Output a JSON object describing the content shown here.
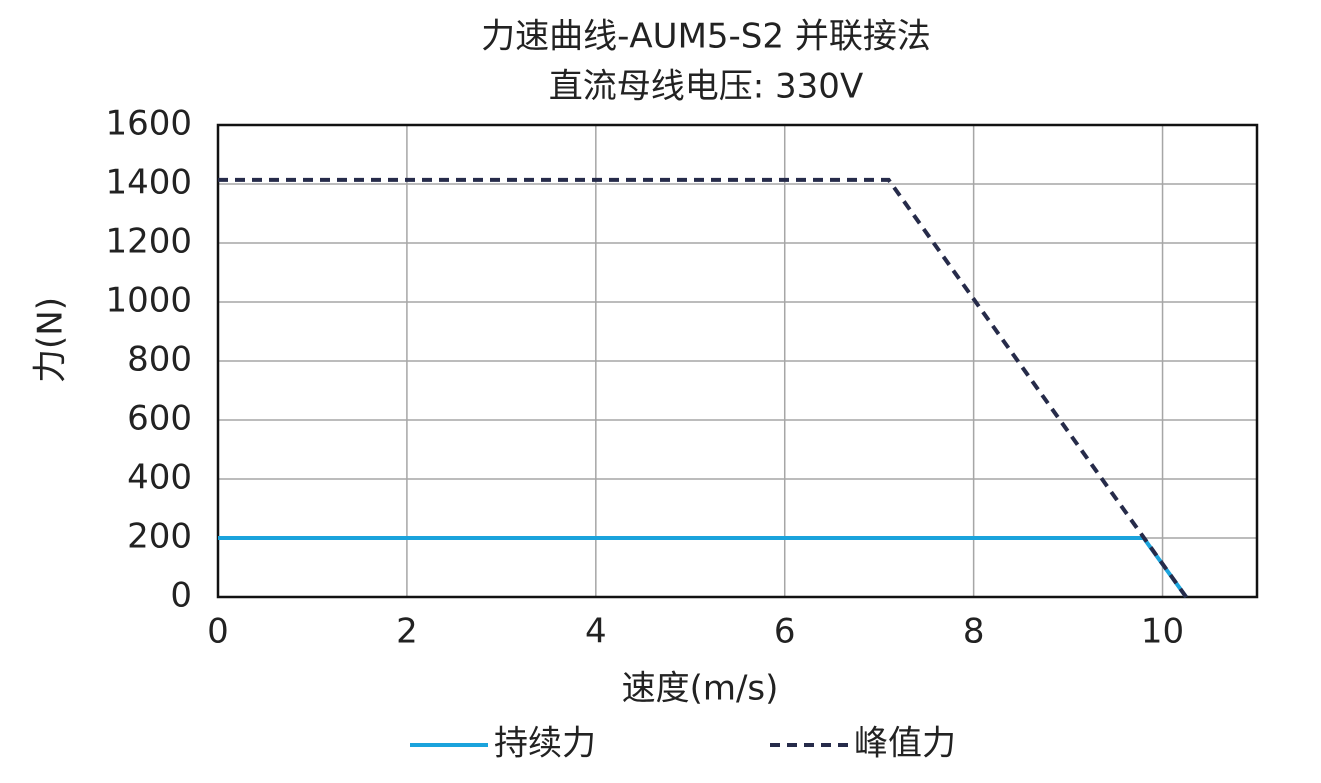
{
  "chart_data": {
    "type": "line",
    "title": "力速曲线-AUM5-S2 并联接法",
    "subtitle": "直流母线电压: 330V",
    "x_label": "速度(m/s)",
    "y_label": "力(N)",
    "series": [
      {
        "name": "持续力",
        "color": "#1aa3dc",
        "dash": false,
        "x": [
          0,
          9.8,
          10.25
        ],
        "values": [
          200,
          200,
          0
        ]
      },
      {
        "name": "峰值力",
        "color": "#262b4a",
        "dash": true,
        "x": [
          0,
          7.1,
          10.25
        ],
        "values": [
          1414,
          1414,
          0
        ]
      }
    ],
    "xlim": [
      0,
      11
    ],
    "xticks": [
      0,
      2,
      4,
      6,
      8,
      10
    ],
    "ylim": [
      0,
      1600
    ],
    "yticks": [
      0,
      200,
      400,
      600,
      800,
      1000,
      1200,
      1400,
      1600
    ],
    "grid": true,
    "legend": "bottom"
  }
}
